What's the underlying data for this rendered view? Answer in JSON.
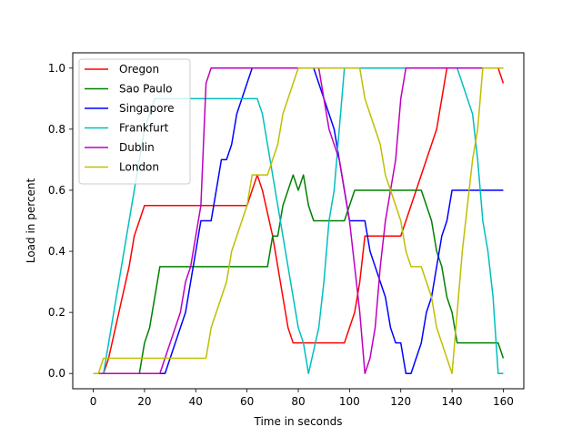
{
  "chart_data": {
    "type": "line",
    "xlabel": "Time in seconds",
    "ylabel": "Load in percent",
    "xlim": [
      -8,
      168
    ],
    "ylim": [
      -0.05,
      1.05
    ],
    "xticks": [
      0,
      20,
      40,
      60,
      80,
      100,
      120,
      140,
      160
    ],
    "yticks": [
      0.0,
      0.2,
      0.4,
      0.6,
      0.8,
      1.0
    ],
    "ytick_labels": [
      "0.0",
      "0.2",
      "0.4",
      "0.6",
      "0.8",
      "1.0"
    ],
    "grid": false,
    "legend_position": "top-left",
    "series": [
      {
        "name": "Oregon",
        "color": "#ff0000",
        "points": [
          [
            0,
            0
          ],
          [
            4,
            0
          ],
          [
            6,
            0.05
          ],
          [
            10,
            0.2
          ],
          [
            14,
            0.35
          ],
          [
            16,
            0.45
          ],
          [
            18,
            0.5
          ],
          [
            20,
            0.55
          ],
          [
            60,
            0.55
          ],
          [
            64,
            0.65
          ],
          [
            66,
            0.6
          ],
          [
            70,
            0.45
          ],
          [
            74,
            0.25
          ],
          [
            76,
            0.15
          ],
          [
            78,
            0.1
          ],
          [
            98,
            0.1
          ],
          [
            100,
            0.15
          ],
          [
            102,
            0.2
          ],
          [
            104,
            0.3
          ],
          [
            106,
            0.45
          ],
          [
            108,
            0.45
          ],
          [
            120,
            0.45
          ],
          [
            122,
            0.5
          ],
          [
            126,
            0.6
          ],
          [
            130,
            0.7
          ],
          [
            134,
            0.8
          ],
          [
            138,
            1
          ],
          [
            158,
            1
          ],
          [
            160,
            0.95
          ]
        ]
      },
      {
        "name": "Sao Paulo",
        "color": "#008000",
        "points": [
          [
            0,
            0
          ],
          [
            18,
            0
          ],
          [
            20,
            0.1
          ],
          [
            22,
            0.15
          ],
          [
            24,
            0.25
          ],
          [
            26,
            0.35
          ],
          [
            66,
            0.35
          ],
          [
            68,
            0.35
          ],
          [
            70,
            0.45
          ],
          [
            72,
            0.45
          ],
          [
            74,
            0.55
          ],
          [
            76,
            0.6
          ],
          [
            78,
            0.65
          ],
          [
            80,
            0.6
          ],
          [
            82,
            0.65
          ],
          [
            84,
            0.55
          ],
          [
            86,
            0.5
          ],
          [
            98,
            0.5
          ],
          [
            100,
            0.55
          ],
          [
            102,
            0.6
          ],
          [
            128,
            0.6
          ],
          [
            130,
            0.55
          ],
          [
            132,
            0.5
          ],
          [
            134,
            0.4
          ],
          [
            136,
            0.35
          ],
          [
            138,
            0.25
          ],
          [
            140,
            0.2
          ],
          [
            142,
            0.1
          ],
          [
            158,
            0.1
          ],
          [
            160,
            0.05
          ]
        ]
      },
      {
        "name": "Singapore",
        "color": "#0000ff",
        "points": [
          [
            0,
            0
          ],
          [
            28,
            0
          ],
          [
            30,
            0.05
          ],
          [
            32,
            0.1
          ],
          [
            34,
            0.15
          ],
          [
            36,
            0.2
          ],
          [
            38,
            0.3
          ],
          [
            40,
            0.4
          ],
          [
            42,
            0.5
          ],
          [
            46,
            0.5
          ],
          [
            48,
            0.6
          ],
          [
            50,
            0.7
          ],
          [
            52,
            0.7
          ],
          [
            54,
            0.75
          ],
          [
            56,
            0.85
          ],
          [
            60,
            0.95
          ],
          [
            62,
            1
          ],
          [
            86,
            1
          ],
          [
            88,
            0.95
          ],
          [
            90,
            0.9
          ],
          [
            92,
            0.85
          ],
          [
            94,
            0.8
          ],
          [
            96,
            0.7
          ],
          [
            98,
            0.6
          ],
          [
            100,
            0.5
          ],
          [
            106,
            0.5
          ],
          [
            108,
            0.4
          ],
          [
            110,
            0.35
          ],
          [
            112,
            0.3
          ],
          [
            114,
            0.25
          ],
          [
            116,
            0.15
          ],
          [
            118,
            0.1
          ],
          [
            120,
            0.1
          ],
          [
            122,
            0
          ],
          [
            124,
            0
          ],
          [
            128,
            0.1
          ],
          [
            130,
            0.2
          ],
          [
            132,
            0.25
          ],
          [
            136,
            0.45
          ],
          [
            138,
            0.5
          ],
          [
            140,
            0.6
          ],
          [
            160,
            0.6
          ]
        ]
      },
      {
        "name": "Frankfurt",
        "color": "#00bfbf",
        "points": [
          [
            0,
            0
          ],
          [
            4,
            0
          ],
          [
            8,
            0.2
          ],
          [
            12,
            0.4
          ],
          [
            16,
            0.6
          ],
          [
            20,
            0.8
          ],
          [
            24,
            0.9
          ],
          [
            64,
            0.9
          ],
          [
            66,
            0.85
          ],
          [
            68,
            0.75
          ],
          [
            72,
            0.55
          ],
          [
            76,
            0.35
          ],
          [
            80,
            0.15
          ],
          [
            82,
            0.1
          ],
          [
            84,
            0
          ],
          [
            88,
            0.15
          ],
          [
            90,
            0.3
          ],
          [
            92,
            0.5
          ],
          [
            94,
            0.6
          ],
          [
            96,
            0.8
          ],
          [
            98,
            1
          ],
          [
            142,
            1
          ],
          [
            144,
            0.95
          ],
          [
            146,
            0.9
          ],
          [
            148,
            0.85
          ],
          [
            150,
            0.7
          ],
          [
            152,
            0.5
          ],
          [
            154,
            0.4
          ],
          [
            156,
            0.25
          ],
          [
            158,
            0
          ],
          [
            160,
            0
          ]
        ]
      },
      {
        "name": "Dublin",
        "color": "#bf00bf",
        "points": [
          [
            0,
            0
          ],
          [
            26,
            0
          ],
          [
            28,
            0.05
          ],
          [
            30,
            0.1
          ],
          [
            32,
            0.15
          ],
          [
            34,
            0.2
          ],
          [
            36,
            0.3
          ],
          [
            38,
            0.35
          ],
          [
            40,
            0.45
          ],
          [
            42,
            0.55
          ],
          [
            44,
            0.95
          ],
          [
            46,
            1
          ],
          [
            88,
            1
          ],
          [
            90,
            0.9
          ],
          [
            92,
            0.8
          ],
          [
            94,
            0.75
          ],
          [
            96,
            0.7
          ],
          [
            98,
            0.6
          ],
          [
            100,
            0.5
          ],
          [
            102,
            0.35
          ],
          [
            104,
            0.2
          ],
          [
            106,
            0
          ],
          [
            108,
            0.05
          ],
          [
            110,
            0.15
          ],
          [
            112,
            0.35
          ],
          [
            114,
            0.5
          ],
          [
            116,
            0.6
          ],
          [
            118,
            0.7
          ],
          [
            120,
            0.9
          ],
          [
            122,
            1
          ],
          [
            160,
            1
          ]
        ]
      },
      {
        "name": "London",
        "color": "#bfbf00",
        "points": [
          [
            0,
            0
          ],
          [
            2,
            0
          ],
          [
            4,
            0.05
          ],
          [
            44,
            0.05
          ],
          [
            46,
            0.15
          ],
          [
            50,
            0.25
          ],
          [
            52,
            0.3
          ],
          [
            54,
            0.4
          ],
          [
            56,
            0.45
          ],
          [
            58,
            0.5
          ],
          [
            60,
            0.55
          ],
          [
            62,
            0.65
          ],
          [
            68,
            0.65
          ],
          [
            70,
            0.7
          ],
          [
            72,
            0.75
          ],
          [
            74,
            0.85
          ],
          [
            76,
            0.9
          ],
          [
            78,
            0.95
          ],
          [
            80,
            1
          ],
          [
            104,
            1
          ],
          [
            106,
            0.9
          ],
          [
            108,
            0.85
          ],
          [
            110,
            0.8
          ],
          [
            112,
            0.75
          ],
          [
            114,
            0.65
          ],
          [
            116,
            0.6
          ],
          [
            118,
            0.55
          ],
          [
            120,
            0.5
          ],
          [
            122,
            0.4
          ],
          [
            124,
            0.35
          ],
          [
            128,
            0.35
          ],
          [
            130,
            0.3
          ],
          [
            132,
            0.25
          ],
          [
            134,
            0.15
          ],
          [
            136,
            0.1
          ],
          [
            138,
            0.05
          ],
          [
            140,
            0
          ],
          [
            142,
            0.2
          ],
          [
            144,
            0.4
          ],
          [
            146,
            0.55
          ],
          [
            148,
            0.7
          ],
          [
            150,
            0.8
          ],
          [
            152,
            1
          ],
          [
            160,
            1
          ]
        ]
      }
    ]
  }
}
